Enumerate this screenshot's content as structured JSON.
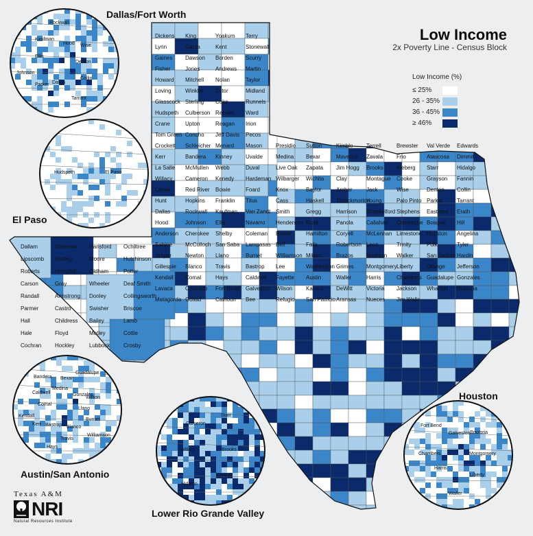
{
  "title": "Low Income",
  "subtitle": "2x Poverty Line - Census Block",
  "legend": {
    "title": "Low Income (%)",
    "items": [
      {
        "label": "≤ 25%",
        "color": "#ffffff"
      },
      {
        "label": "26 - 35%",
        "color": "#a9cfea"
      },
      {
        "label": "36 - 45%",
        "color": "#3a86c8"
      },
      {
        "label": "≥ 46%",
        "color": "#0b2a6b"
      }
    ]
  },
  "insets": {
    "dfw": "Dallas/Fort Worth",
    "el_paso": "El Paso",
    "austin_sa": "Austin/San Antonio",
    "rio_grande": "Lower Rio Grande Valley",
    "houston": "Houston"
  },
  "logo": {
    "university": "Texas A&M",
    "acronym": "NRI",
    "full_name": "Natural Resources Institute"
  },
  "county_labels": [
    "Dallam",
    "Sherman",
    "Hansford",
    "Ochiltree",
    "Lipscomb",
    "Hartley",
    "Moore",
    "Hutchinson",
    "Roberts",
    "Hemphill",
    "Oldham",
    "Potter",
    "Carson",
    "Gray",
    "Wheeler",
    "Deaf Smith",
    "Randall",
    "Armstrong",
    "Donley",
    "Collingsworth",
    "Parmer",
    "Castro",
    "Swisher",
    "Briscoe",
    "Hall",
    "Childress",
    "Bailey",
    "Lamb",
    "Hale",
    "Floyd",
    "Motley",
    "Cottle",
    "Cochran",
    "Hockley",
    "Lubbock",
    "Crosby",
    "Dickens",
    "King",
    "Yoakum",
    "Terry",
    "Lynn",
    "Garza",
    "Kent",
    "Stonewall",
    "Gaines",
    "Dawson",
    "Borden",
    "Scurry",
    "Fisher",
    "Jones",
    "Andrews",
    "Martin",
    "Howard",
    "Mitchell",
    "Nolan",
    "Taylor",
    "Loving",
    "Winkler",
    "Ector",
    "Midland",
    "Glasscock",
    "Sterling",
    "Coke",
    "Runnels",
    "Hudspeth",
    "Culberson",
    "Reeves",
    "Ward",
    "Crane",
    "Upton",
    "Reagan",
    "Irion",
    "Tom Green",
    "Concho",
    "Jeff Davis",
    "Pecos",
    "Crockett",
    "Schleicher",
    "Menard",
    "Mason",
    "Presidio",
    "Sutton",
    "Kimble",
    "Terrell",
    "Brewster",
    "Val Verde",
    "Edwards",
    "Kerr",
    "Bandera",
    "Kinney",
    "Uvalde",
    "Medina",
    "Bexar",
    "Maverick",
    "Zavala",
    "Frio",
    "Atascosa",
    "Dimmit",
    "La Salle",
    "McMullen",
    "Webb",
    "Duval",
    "Live Oak",
    "Zapata",
    "Jim Hogg",
    "Brooks",
    "Kleberg",
    "Starr",
    "Hidalgo",
    "Willacy",
    "Cameron",
    "Kenedy",
    "Hardeman",
    "Wilbarger",
    "Wichita",
    "Clay",
    "Montague",
    "Cooke",
    "Grayson",
    "Fannin",
    "Lamar",
    "Red River",
    "Bowie",
    "Foard",
    "Knox",
    "Baylor",
    "Archer",
    "Jack",
    "Wise",
    "Denton",
    "Collin",
    "Hunt",
    "Hopkins",
    "Franklin",
    "Titus",
    "Cass",
    "Haskell",
    "Throckmorton",
    "Young",
    "Palo Pinto",
    "Parker",
    "Tarrant",
    "Dallas",
    "Rockwall",
    "Kaufman",
    "Van Zandt",
    "Smith",
    "Gregg",
    "Harrison",
    "Shackelford",
    "Stephens",
    "Eastland",
    "Erath",
    "Hood",
    "Johnson",
    "Ellis",
    "Navarro",
    "Henderson",
    "Rusk",
    "Panola",
    "Callahan",
    "Comanche",
    "Bosque",
    "Hill",
    "Anderson",
    "Cherokee",
    "Shelby",
    "Coleman",
    "Brown",
    "Hamilton",
    "Coryell",
    "McLennan",
    "Limestone",
    "Houston",
    "Angelina",
    "Sabine",
    "McCulloch",
    "San Saba",
    "Lampasas",
    "Bell",
    "Falls",
    "Robertson",
    "Leon",
    "Trinity",
    "Polk",
    "Tyler",
    "Jasper",
    "Newton",
    "Llano",
    "Burnet",
    "Williamson",
    "Milam",
    "Brazos",
    "Madison",
    "Walker",
    "San Jacinto",
    "Hardin",
    "Gillespie",
    "Blanco",
    "Travis",
    "Bastrop",
    "Lee",
    "Washington",
    "Grimes",
    "Montgomery",
    "Liberty",
    "Orange",
    "Jefferson",
    "Kendall",
    "Comal",
    "Hays",
    "Caldwell",
    "Fayette",
    "Austin",
    "Waller",
    "Harris",
    "Chambers",
    "Guadalupe",
    "Gonzales",
    "Lavaca",
    "Colorado",
    "Fort Bend",
    "Galveston",
    "Wilson",
    "Karnes",
    "DeWitt",
    "Victoria",
    "Jackson",
    "Wharton",
    "Brazoria",
    "Matagorda",
    "Goliad",
    "Calhoun",
    "Bee",
    "Refugio",
    "San Patricio",
    "Aransas",
    "Nueces",
    "Jim Wells"
  ],
  "inset_place_labels": {
    "dfw": [
      "Denton",
      "Collin",
      "Tarrant",
      "Dallas",
      "Parker",
      "Johnson",
      "Ellis",
      "Kaufman",
      "Rockwall",
      "Hood",
      "Wise"
    ],
    "el_paso": [
      "El Paso",
      "Hudspeth"
    ],
    "austin_sa": [
      "Llano",
      "Burnet",
      "Williamson",
      "Blanco",
      "Travis",
      "Hays",
      "Bastrop",
      "Kerr",
      "Kendall",
      "Comal",
      "Caldwell",
      "Bandera",
      "Medina",
      "Bexar",
      "Guadalupe",
      "Gonzales",
      "Wilson"
    ],
    "rio_grande": [
      "Brooks",
      "Kenedy",
      "Hidalgo",
      "Willacy",
      "Cameron",
      "Starr"
    ],
    "houston": [
      "Montgomery",
      "Liberty",
      "Waller",
      "Harris",
      "Chambers",
      "Fort Bend",
      "Galveston",
      "Brazoria"
    ]
  }
}
